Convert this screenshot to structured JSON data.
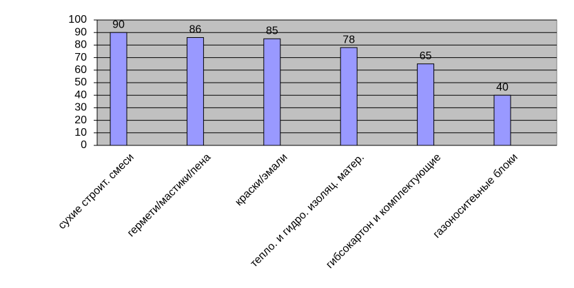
{
  "chart_data": {
    "type": "bar",
    "categories": [
      "сухие строит. смеси",
      "гермети/мастики/пена",
      "краски/эмали",
      "тепло. и гидро. изоляц. матер.",
      "гибсокартон и комплектующие",
      "газоноситеьные блоки"
    ],
    "values": [
      90,
      86,
      85,
      78,
      65,
      40
    ],
    "color": "#9999ff",
    "ylim": [
      0,
      100
    ],
    "yticks": [
      0,
      10,
      20,
      30,
      40,
      50,
      60,
      70,
      80,
      90,
      100
    ],
    "grid": true
  }
}
